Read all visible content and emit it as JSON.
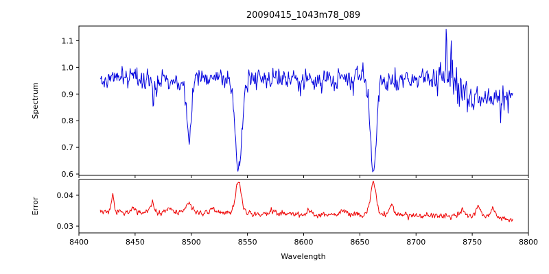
{
  "chart_data": [
    {
      "type": "line",
      "name": "spectrum",
      "title": "20090415_1043m78_089",
      "ylabel": "Spectrum",
      "color": "#0000dd",
      "xlim": [
        8400,
        8800
      ],
      "ylim": [
        0.595,
        1.155
      ],
      "xticks": [
        "8400",
        "8450",
        "8500",
        "8550",
        "8600",
        "8650",
        "8700",
        "8750",
        "8800"
      ],
      "yticks": [
        "0.6",
        "0.7",
        "0.8",
        "0.9",
        "1.0",
        "1.1"
      ],
      "x_start": 8419,
      "x_end": 8786,
      "n_points": 720,
      "noise_scales_with_value": true,
      "continuum_envelope": [
        [
          8419,
          0.94
        ],
        [
          8440,
          0.96
        ],
        [
          8470,
          0.955
        ],
        [
          8520,
          0.965
        ],
        [
          8560,
          0.958
        ],
        [
          8600,
          0.955
        ],
        [
          8640,
          0.965
        ],
        [
          8680,
          0.95
        ],
        [
          8712,
          0.958
        ],
        [
          8735,
          0.95
        ],
        [
          8745,
          0.88
        ],
        [
          8770,
          0.885
        ],
        [
          8786,
          0.915
        ]
      ],
      "noise_std": 0.027,
      "extra_noise_regions": [
        {
          "from": 8715,
          "to": 8748,
          "std": 0.018
        },
        {
          "from": 8748,
          "to": 8786,
          "std": 0.008
        }
      ],
      "absorption_lines": [
        {
          "center": 8467,
          "depth": 0.06,
          "sigma": 1.5
        },
        {
          "center": 8498,
          "depth": 0.235,
          "sigma": 2.2
        },
        {
          "center": 8542,
          "depth": 0.355,
          "sigma": 3.0
        },
        {
          "center": 8662,
          "depth": 0.345,
          "sigma": 2.8
        }
      ],
      "spikes": [
        {
          "x": 8727,
          "height": 0.16
        },
        {
          "x": 8731,
          "height": 0.12
        },
        {
          "x": 8736,
          "height": 0.09
        }
      ]
    },
    {
      "type": "line",
      "name": "error",
      "ylabel": "Error",
      "xlabel": "Wavelength",
      "color": "#ee0000",
      "xlim": [
        8400,
        8800
      ],
      "ylim": [
        0.0278,
        0.0451
      ],
      "xticks": [
        "8400",
        "8450",
        "8500",
        "8550",
        "8600",
        "8650",
        "8700",
        "8750",
        "8800"
      ],
      "yticks": [
        "0.03",
        "0.04"
      ],
      "x_start": 8419,
      "x_end": 8786,
      "n_points": 720,
      "baseline_envelope": [
        [
          8419,
          0.0345
        ],
        [
          8500,
          0.0344
        ],
        [
          8600,
          0.0338
        ],
        [
          8680,
          0.0336
        ],
        [
          8740,
          0.0332
        ],
        [
          8770,
          0.033
        ],
        [
          8786,
          0.0318
        ]
      ],
      "noise_std": 0.0006,
      "bumps": [
        {
          "center": 8430,
          "height": 0.0055,
          "sigma": 1.2
        },
        {
          "center": 8448,
          "height": 0.0015,
          "sigma": 2.0
        },
        {
          "center": 8465,
          "height": 0.0028,
          "sigma": 2.0
        },
        {
          "center": 8481,
          "height": 0.0015,
          "sigma": 2.0
        },
        {
          "center": 8498,
          "height": 0.003,
          "sigma": 2.5
        },
        {
          "center": 8520,
          "height": 0.0015,
          "sigma": 2.0
        },
        {
          "center": 8542,
          "height": 0.01,
          "sigma": 2.6
        },
        {
          "center": 8572,
          "height": 0.0012,
          "sigma": 2.0
        },
        {
          "center": 8605,
          "height": 0.0012,
          "sigma": 2.0
        },
        {
          "center": 8635,
          "height": 0.0012,
          "sigma": 2.0
        },
        {
          "center": 8662,
          "height": 0.0105,
          "sigma": 2.6
        },
        {
          "center": 8678,
          "height": 0.003,
          "sigma": 2.0
        },
        {
          "center": 8742,
          "height": 0.0018,
          "sigma": 2.0
        },
        {
          "center": 8755,
          "height": 0.0035,
          "sigma": 2.0
        },
        {
          "center": 8768,
          "height": 0.003,
          "sigma": 2.0
        }
      ]
    }
  ]
}
